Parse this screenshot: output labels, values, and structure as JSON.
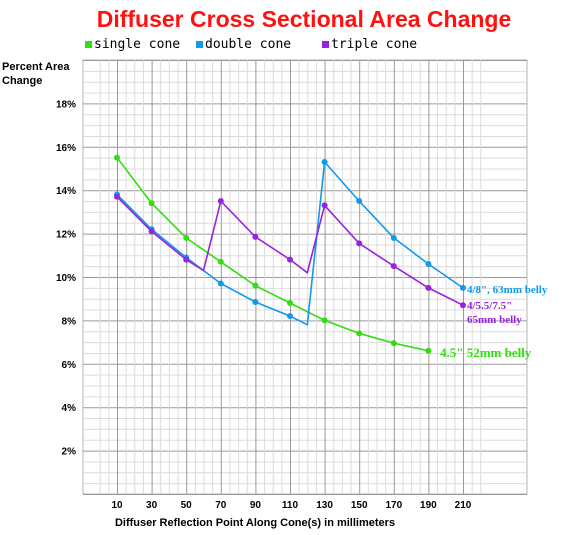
{
  "chart_data": {
    "type": "line",
    "title": "Diffuser Cross Sectional Area Change",
    "ylabel_line1": "Percent Area",
    "ylabel_line2": "Change",
    "xlabel": "Diffuser Reflection Point Along Cone(s) in millimeters",
    "x_ticks": [
      10,
      30,
      50,
      70,
      90,
      110,
      130,
      150,
      170,
      190,
      210
    ],
    "y_ticks": [
      2,
      4,
      6,
      8,
      10,
      12,
      14,
      16,
      18
    ],
    "y_tick_labels": [
      "2%",
      "4%",
      "6%",
      "8%",
      "10%",
      "12%",
      "14%",
      "16%",
      "18%"
    ],
    "xlim": [
      0,
      220
    ],
    "ylim": [
      0,
      20
    ],
    "grid": true,
    "legend_position": "top",
    "series": [
      {
        "name": "single cone",
        "color": "#33dd11",
        "points": [
          [
            10,
            15.5
          ],
          [
            30,
            13.4
          ],
          [
            50,
            11.8
          ],
          [
            70,
            10.7
          ],
          [
            90,
            9.6
          ],
          [
            110,
            8.8
          ],
          [
            130,
            8.0
          ],
          [
            150,
            7.4
          ],
          [
            170,
            6.95
          ],
          [
            190,
            6.6
          ]
        ],
        "end_label": "4.5\"  52mm belly"
      },
      {
        "name": "double cone",
        "color": "#1199ee",
        "points": [
          [
            10,
            13.8
          ],
          [
            30,
            12.2
          ],
          [
            50,
            10.9
          ],
          [
            60,
            10.3
          ],
          [
            70,
            9.7
          ],
          [
            90,
            8.85
          ],
          [
            110,
            8.2
          ],
          [
            120,
            7.8
          ],
          [
            130,
            15.3
          ],
          [
            150,
            13.5
          ],
          [
            170,
            11.8
          ],
          [
            190,
            10.6
          ],
          [
            210,
            9.5
          ]
        ],
        "end_label": "4/8\", 63mm belly"
      },
      {
        "name": "triple cone",
        "color": "#9922dd",
        "points": [
          [
            10,
            13.7
          ],
          [
            30,
            12.1
          ],
          [
            50,
            10.8
          ],
          [
            60,
            10.3
          ],
          [
            70,
            13.5
          ],
          [
            90,
            11.85
          ],
          [
            110,
            10.8
          ],
          [
            120,
            10.2
          ],
          [
            130,
            13.3
          ],
          [
            150,
            11.55
          ],
          [
            170,
            10.5
          ],
          [
            190,
            9.5
          ],
          [
            210,
            8.7
          ]
        ],
        "end_label_line1": "4/5.5/7.5\"",
        "end_label_line2": "65mm belly"
      }
    ]
  }
}
